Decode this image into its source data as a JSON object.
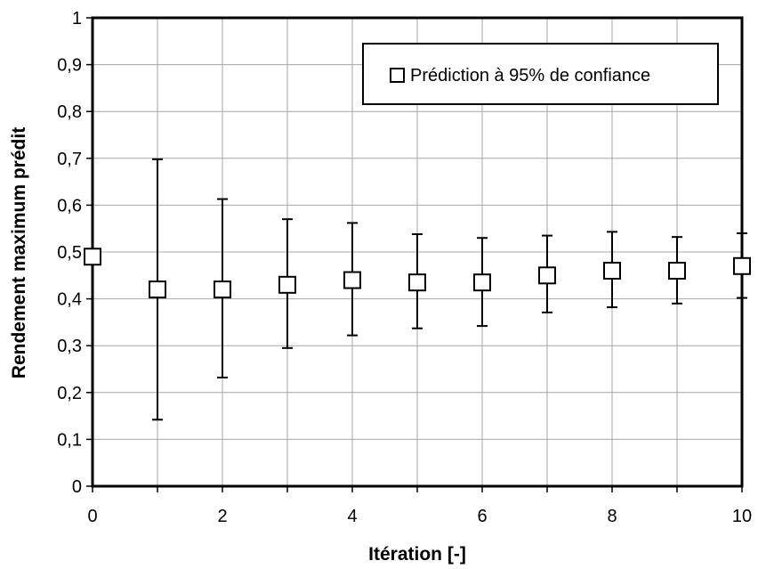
{
  "chart_data": {
    "type": "scatter",
    "title": "",
    "xlabel": "Itération [-]",
    "ylabel": "Rendement maximum prédit",
    "xlim": [
      0,
      10
    ],
    "ylim": [
      0,
      1
    ],
    "x_ticks": [
      0,
      2,
      4,
      6,
      8,
      10
    ],
    "x_tick_labels": [
      "0",
      "2",
      "4",
      "6",
      "8",
      "10"
    ],
    "y_ticks": [
      0,
      0.1,
      0.2,
      0.3,
      0.4,
      0.5,
      0.6,
      0.7,
      0.8,
      0.9,
      1
    ],
    "y_tick_labels": [
      "0",
      "0,1",
      "0,2",
      "0,3",
      "0,4",
      "0,5",
      "0,6",
      "0,7",
      "0,8",
      "0,9",
      "1"
    ],
    "grid": true,
    "legend_position": "top-right",
    "series": [
      {
        "name": "Prédiction à 95% de confiance",
        "marker": "square",
        "color": "#000000",
        "x": [
          0,
          1,
          2,
          3,
          4,
          5,
          6,
          7,
          8,
          9,
          10
        ],
        "y": [
          0.49,
          0.42,
          0.42,
          0.43,
          0.44,
          0.435,
          0.435,
          0.45,
          0.46,
          0.46,
          0.47
        ],
        "error_low": [
          null,
          0.142,
          0.232,
          0.295,
          0.322,
          0.337,
          0.342,
          0.371,
          0.382,
          0.39,
          0.402
        ],
        "error_high": [
          null,
          0.698,
          0.613,
          0.57,
          0.562,
          0.538,
          0.53,
          0.535,
          0.543,
          0.532,
          0.54
        ]
      }
    ]
  }
}
